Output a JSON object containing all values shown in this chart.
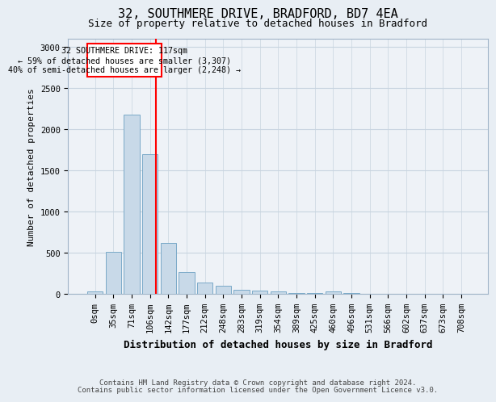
{
  "title1": "32, SOUTHMERE DRIVE, BRADFORD, BD7 4EA",
  "title2": "Size of property relative to detached houses in Bradford",
  "xlabel": "Distribution of detached houses by size in Bradford",
  "ylabel": "Number of detached properties",
  "bar_labels": [
    "0sqm",
    "35sqm",
    "71sqm",
    "106sqm",
    "142sqm",
    "177sqm",
    "212sqm",
    "248sqm",
    "283sqm",
    "319sqm",
    "354sqm",
    "389sqm",
    "425sqm",
    "460sqm",
    "496sqm",
    "531sqm",
    "566sqm",
    "602sqm",
    "637sqm",
    "673sqm",
    "708sqm"
  ],
  "bar_values": [
    30,
    510,
    2180,
    1700,
    620,
    270,
    145,
    100,
    50,
    40,
    30,
    15,
    10,
    30,
    10,
    0,
    0,
    0,
    0,
    0,
    0
  ],
  "bar_color": "#c8d9e8",
  "bar_edgecolor": "#7baac8",
  "ylim": [
    0,
    3100
  ],
  "yticks": [
    0,
    500,
    1000,
    1500,
    2000,
    2500,
    3000
  ],
  "red_line_x": 3.34,
  "annotation_line1": "32 SOUTHMERE DRIVE: 117sqm",
  "annotation_line2": "← 59% of detached houses are smaller (3,307)",
  "annotation_line3": "40% of semi-detached houses are larger (2,248) →",
  "footer1": "Contains HM Land Registry data © Crown copyright and database right 2024.",
  "footer2": "Contains public sector information licensed under the Open Government Licence v3.0.",
  "background_color": "#e8eef4",
  "plot_bg_color": "#eef2f7",
  "grid_color": "#c8d4e0",
  "title1_fontsize": 11,
  "title2_fontsize": 9,
  "ylabel_fontsize": 8,
  "xlabel_fontsize": 9,
  "tick_fontsize": 7.5,
  "footer_fontsize": 6.5
}
